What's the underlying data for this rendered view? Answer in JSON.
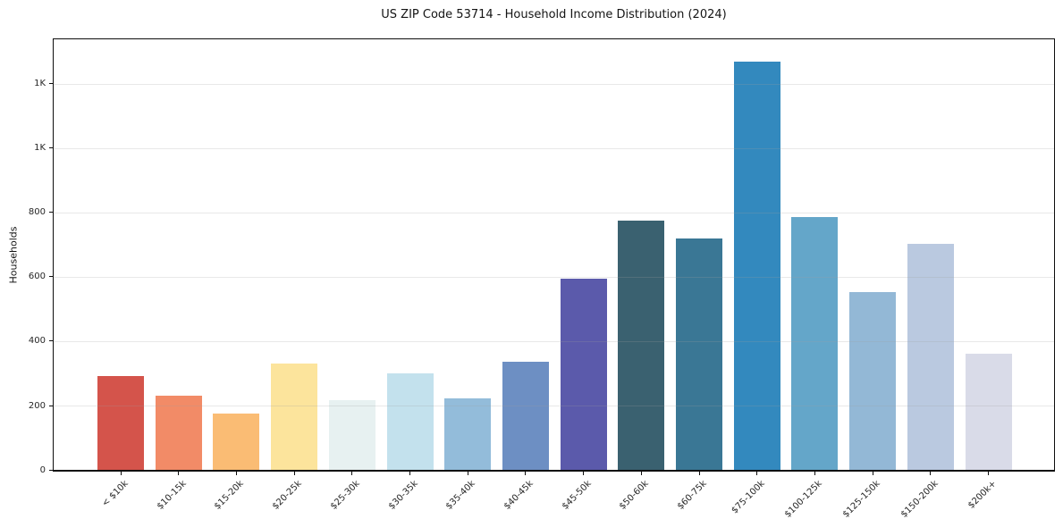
{
  "chart_data": {
    "type": "bar",
    "title": "US ZIP Code 53714 - Household Income Distribution (2024)",
    "xlabel": "",
    "ylabel": "Households",
    "categories": [
      "< $10k",
      "$10-15k",
      "$15-20k",
      "$20-25k",
      "$25-30k",
      "$30-35k",
      "$35-40k",
      "$40-45k",
      "$45-50k",
      "$50-60k",
      "$60-75k",
      "$75-100k",
      "$100-125k",
      "$125-150k",
      "$150-200k",
      "$200k+"
    ],
    "values": [
      292,
      230,
      174,
      330,
      216,
      300,
      223,
      335,
      595,
      775,
      720,
      1268,
      786,
      552,
      703,
      360
    ],
    "bar_colors": [
      "#d4544b",
      "#f28b67",
      "#fabc74",
      "#fce49c",
      "#e7f1f1",
      "#c3e1ed",
      "#93bcda",
      "#6d8fc3",
      "#5b5aab",
      "#3a6170",
      "#3a7795",
      "#3389be",
      "#64a6c9",
      "#93b8d6",
      "#bac9e0",
      "#d9dbe8"
    ],
    "ylim": [
      0,
      1338
    ],
    "yticks": [
      {
        "value": 0,
        "label": "0"
      },
      {
        "value": 200,
        "label": "200"
      },
      {
        "value": 400,
        "label": "400"
      },
      {
        "value": 600,
        "label": "600"
      },
      {
        "value": 800,
        "label": "800"
      },
      {
        "value": 1000,
        "label": "1K"
      },
      {
        "value": 1200,
        "label": "1K"
      }
    ],
    "grid": "horizontal",
    "legend": "none",
    "background_color": "#ffffff",
    "spine_color": "#0d0d0d"
  }
}
